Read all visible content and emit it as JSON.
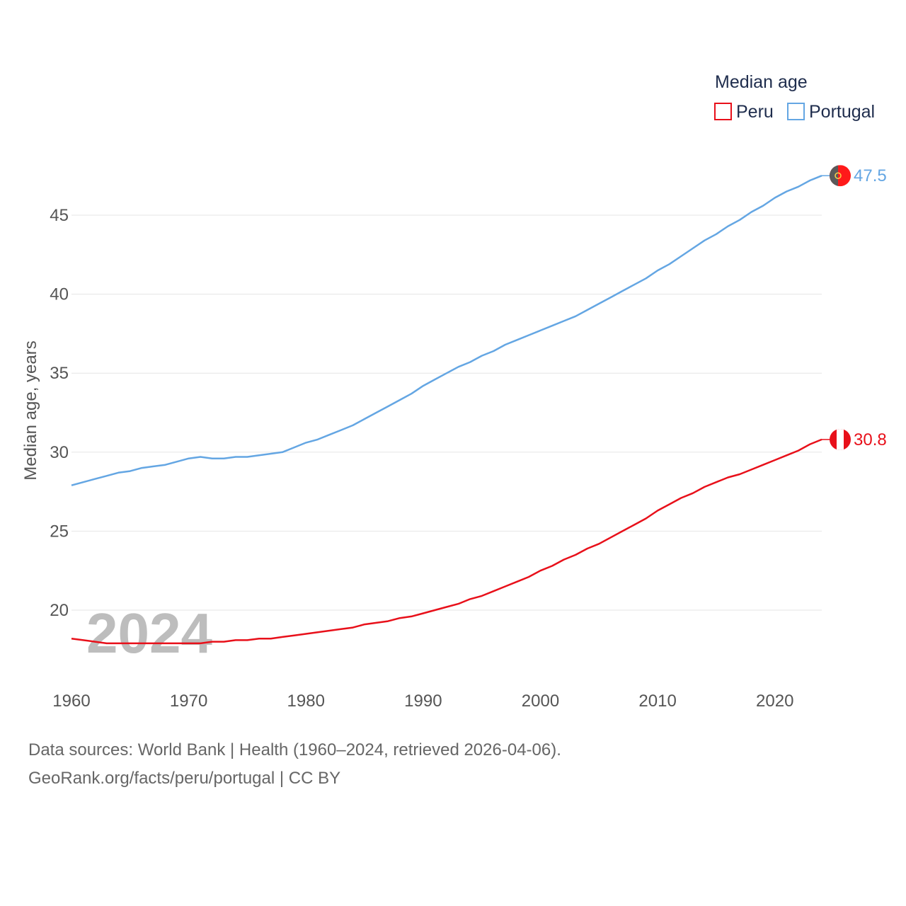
{
  "chart_data": {
    "type": "line",
    "legend_title": "Median age",
    "ylabel": "Median age, years",
    "xlabel": "",
    "xlim": [
      1960,
      2024
    ],
    "ylim": [
      16.2,
      48.5
    ],
    "y_ticks": [
      20,
      25,
      30,
      35,
      40,
      45
    ],
    "x_ticks": [
      1960,
      1970,
      1980,
      1990,
      2000,
      2010,
      2020
    ],
    "grid": true,
    "legend_position": "top-right",
    "current_year": "2024",
    "x": [
      1960,
      1961,
      1962,
      1963,
      1964,
      1965,
      1966,
      1967,
      1968,
      1969,
      1970,
      1971,
      1972,
      1973,
      1974,
      1975,
      1976,
      1977,
      1978,
      1979,
      1980,
      1981,
      1982,
      1983,
      1984,
      1985,
      1986,
      1987,
      1988,
      1989,
      1990,
      1991,
      1992,
      1993,
      1994,
      1995,
      1996,
      1997,
      1998,
      1999,
      2000,
      2001,
      2002,
      2003,
      2004,
      2005,
      2006,
      2007,
      2008,
      2009,
      2010,
      2011,
      2012,
      2013,
      2014,
      2015,
      2016,
      2017,
      2018,
      2019,
      2020,
      2021,
      2022,
      2023,
      2024
    ],
    "series": [
      {
        "name": "Peru",
        "color": "#e8101a",
        "end_value": 30.8,
        "end_label": "30.8",
        "values": [
          18.2,
          18.1,
          18.0,
          17.9,
          17.9,
          17.9,
          17.9,
          17.9,
          17.9,
          17.9,
          17.9,
          17.9,
          18.0,
          18.0,
          18.1,
          18.1,
          18.2,
          18.2,
          18.3,
          18.4,
          18.5,
          18.6,
          18.7,
          18.8,
          18.9,
          19.1,
          19.2,
          19.3,
          19.5,
          19.6,
          19.8,
          20.0,
          20.2,
          20.4,
          20.7,
          20.9,
          21.2,
          21.5,
          21.8,
          22.1,
          22.5,
          22.8,
          23.2,
          23.5,
          23.9,
          24.2,
          24.6,
          25.0,
          25.4,
          25.8,
          26.3,
          26.7,
          27.1,
          27.4,
          27.8,
          28.1,
          28.4,
          28.6,
          28.9,
          29.2,
          29.5,
          29.8,
          30.1,
          30.5,
          30.8
        ]
      },
      {
        "name": "Portugal",
        "color": "#64a6e3",
        "end_value": 47.5,
        "end_label": "47.5",
        "values": [
          27.9,
          28.1,
          28.3,
          28.5,
          28.7,
          28.8,
          29.0,
          29.1,
          29.2,
          29.4,
          29.6,
          29.7,
          29.6,
          29.6,
          29.7,
          29.7,
          29.8,
          29.9,
          30.0,
          30.3,
          30.6,
          30.8,
          31.1,
          31.4,
          31.7,
          32.1,
          32.5,
          32.9,
          33.3,
          33.7,
          34.2,
          34.6,
          35.0,
          35.4,
          35.7,
          36.1,
          36.4,
          36.8,
          37.1,
          37.4,
          37.7,
          38.0,
          38.3,
          38.6,
          39.0,
          39.4,
          39.8,
          40.2,
          40.6,
          41.0,
          41.5,
          41.9,
          42.4,
          42.9,
          43.4,
          43.8,
          44.3,
          44.7,
          45.2,
          45.6,
          46.1,
          46.5,
          46.8,
          47.2,
          47.5
        ]
      }
    ]
  },
  "footer": {
    "line1": "Data sources: World Bank | Health (1960–2024, retrieved 2026-04-06).",
    "line2": "GeoRank.org/facts/peru/portugal | CC BY"
  }
}
